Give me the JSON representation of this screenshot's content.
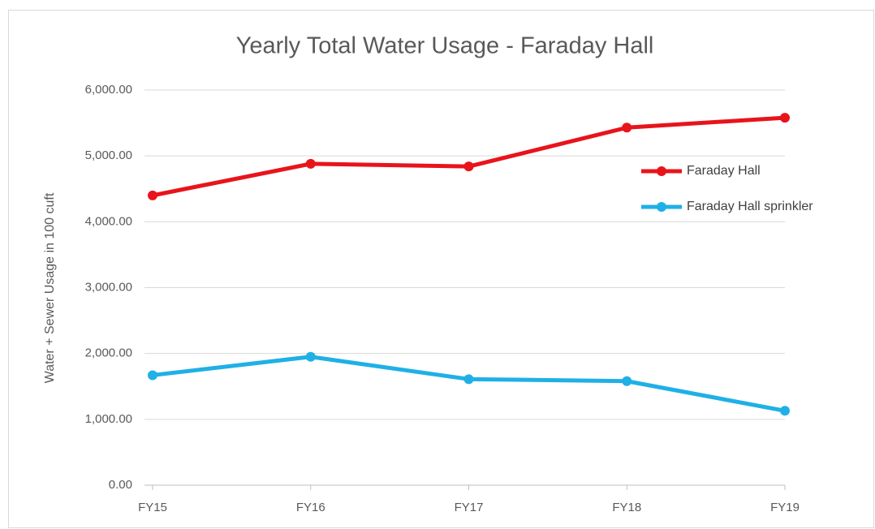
{
  "chart_data": {
    "type": "line",
    "title": "Yearly Total Water Usage - Faraday Hall",
    "y_label": "Water + Sewer Usage in 100 cuft",
    "categories": [
      "FY15",
      "FY16",
      "FY17",
      "FY18",
      "FY19"
    ],
    "series": [
      {
        "name": "Faraday Hall",
        "color": "#e8141b",
        "values": [
          4400,
          4880,
          4840,
          5430,
          5580
        ]
      },
      {
        "name": "Faraday Hall sprinkler",
        "color": "#1fb0e6",
        "values": [
          1670,
          1950,
          1610,
          1580,
          1130
        ]
      }
    ],
    "ylim": [
      0,
      6000
    ],
    "yticks": [
      {
        "value": 0,
        "label": "0.00"
      },
      {
        "value": 1000,
        "label": "1,000.00"
      },
      {
        "value": 2000,
        "label": "2,000.00"
      },
      {
        "value": 3000,
        "label": "3,000.00"
      },
      {
        "value": 4000,
        "label": "4,000.00"
      },
      {
        "value": 5000,
        "label": "5,000.00"
      },
      {
        "value": 6000,
        "label": "6,000.00"
      }
    ],
    "grid": true,
    "legend": "right"
  }
}
